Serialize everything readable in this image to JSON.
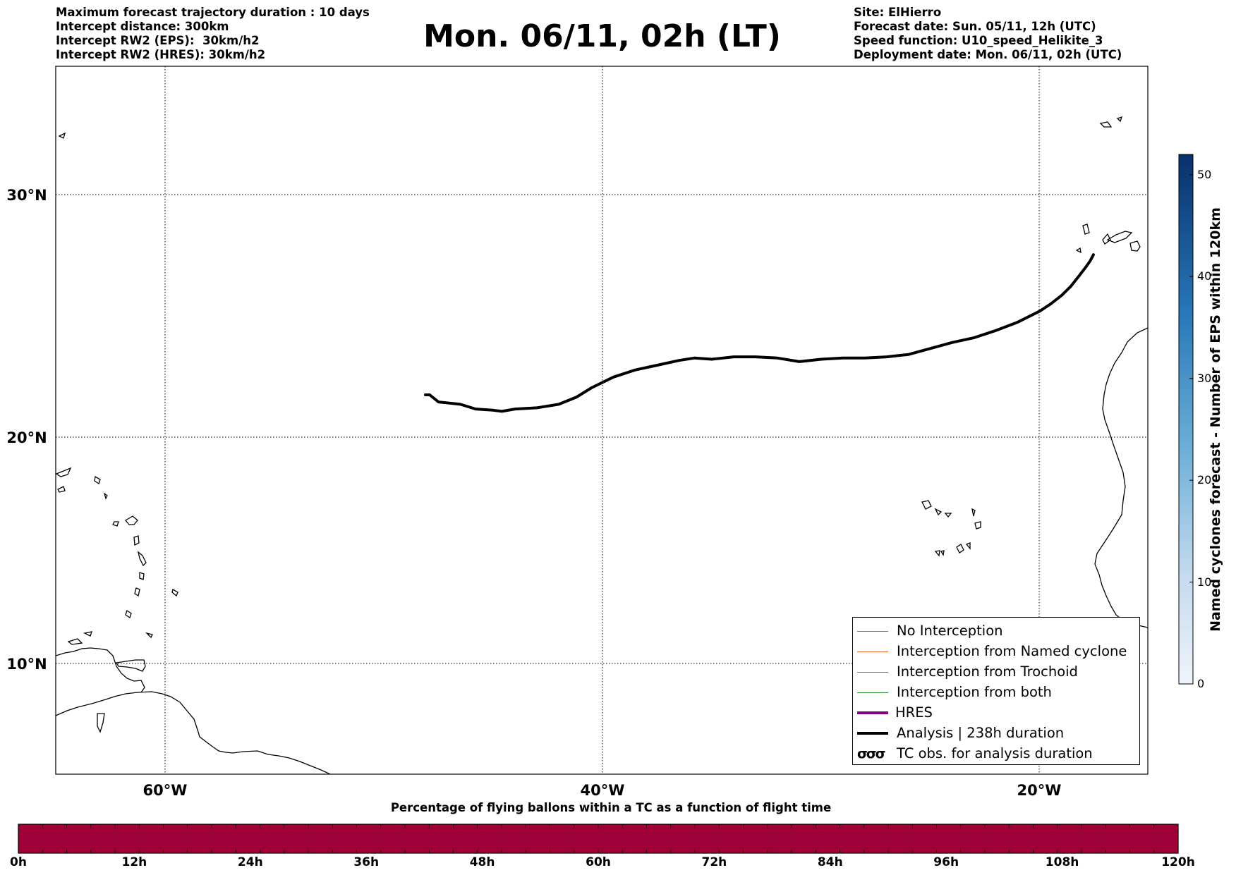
{
  "header_left": [
    "Maximum forecast trajectory duration : 10 days",
    "Intercept distance: 300km",
    "Intercept RW2 (EPS):  30km/h2",
    "Intercept RW2 (HRES): 30km/h2"
  ],
  "header_right": [
    "Site: ElHierro",
    "Forecast date: Sun. 05/11, 12h (UTC)",
    "Speed function: U10_speed_Helikite_3",
    "Deployment date: Mon. 06/11, 02h (UTC)"
  ],
  "title": "Mon. 06/11, 02h (LT)",
  "map": {
    "lon_range": [
      -65,
      -15
    ],
    "lat_range": [
      5,
      35
    ],
    "lat_labels": [
      "30°N",
      "20°N",
      "10°N"
    ],
    "lon_labels": [
      "60°W",
      "40°W",
      "20°W"
    ],
    "analysis_track": [
      [
        -48.1,
        21.8
      ],
      [
        -47.9,
        21.8
      ],
      [
        -47.5,
        21.5
      ],
      [
        -46.5,
        21.4
      ],
      [
        -45.8,
        21.2
      ],
      [
        -45.0,
        21.15
      ],
      [
        -44.6,
        21.1
      ],
      [
        -44.0,
        21.2
      ],
      [
        -43.0,
        21.25
      ],
      [
        -42.0,
        21.4
      ],
      [
        -41.2,
        21.7
      ],
      [
        -40.5,
        22.1
      ],
      [
        -39.5,
        22.55
      ],
      [
        -38.5,
        22.85
      ],
      [
        -37.5,
        23.05
      ],
      [
        -36.5,
        23.25
      ],
      [
        -35.8,
        23.35
      ],
      [
        -35.0,
        23.3
      ],
      [
        -34.0,
        23.4
      ],
      [
        -33.0,
        23.4
      ],
      [
        -32.0,
        23.35
      ],
      [
        -31.0,
        23.2
      ],
      [
        -30.0,
        23.3
      ],
      [
        -29.0,
        23.35
      ],
      [
        -28.0,
        23.35
      ],
      [
        -27.0,
        23.4
      ],
      [
        -26.0,
        23.5
      ],
      [
        -25.0,
        23.75
      ],
      [
        -24.0,
        24.0
      ],
      [
        -23.0,
        24.2
      ],
      [
        -22.0,
        24.5
      ],
      [
        -21.0,
        24.85
      ],
      [
        -20.0,
        25.3
      ],
      [
        -19.5,
        25.6
      ],
      [
        -19.0,
        25.95
      ],
      [
        -18.6,
        26.3
      ],
      [
        -18.2,
        26.75
      ],
      [
        -17.9,
        27.1
      ],
      [
        -17.7,
        27.35
      ],
      [
        -17.55,
        27.6
      ]
    ],
    "analysis_color": "#000000"
  },
  "legend": [
    {
      "label": "No Interception",
      "color": "#7f7f7f",
      "width": 1.2,
      "type": "line"
    },
    {
      "label": "Interception from Named cyclone",
      "color": "#e8642a",
      "width": 1.2,
      "type": "line"
    },
    {
      "label": "Interception from Trochoid",
      "color": "#808020",
      "width": 1.2,
      "type": "line"
    },
    {
      "label": "Interception from both",
      "color": "#2a8a2a",
      "width": 1.2,
      "type": "line"
    },
    {
      "label": "HRES",
      "color": "#800080",
      "width": 3.5,
      "type": "line"
    },
    {
      "label": "Analysis | 238h duration",
      "color": "#000000",
      "width": 3.5,
      "type": "line"
    },
    {
      "label": "TC obs. for analysis duration",
      "symbol": "σσσ",
      "type": "symbol"
    }
  ],
  "colorbar": {
    "title": "Named cyclones forecast - Number of EPS within 120km",
    "ticks": [
      "0",
      "10",
      "20",
      "30",
      "40",
      "50"
    ],
    "min": 0,
    "max": 52,
    "color_low": "#e8f0fa",
    "color_high": "#0b3470"
  },
  "timeline": {
    "title": "Percentage of flying ballons within a TC as a function of flight time",
    "labels": [
      "0h",
      "12h",
      "24h",
      "36h",
      "48h",
      "60h",
      "72h",
      "84h",
      "96h",
      "108h",
      "120h"
    ],
    "bar_color": "#9e0038"
  }
}
